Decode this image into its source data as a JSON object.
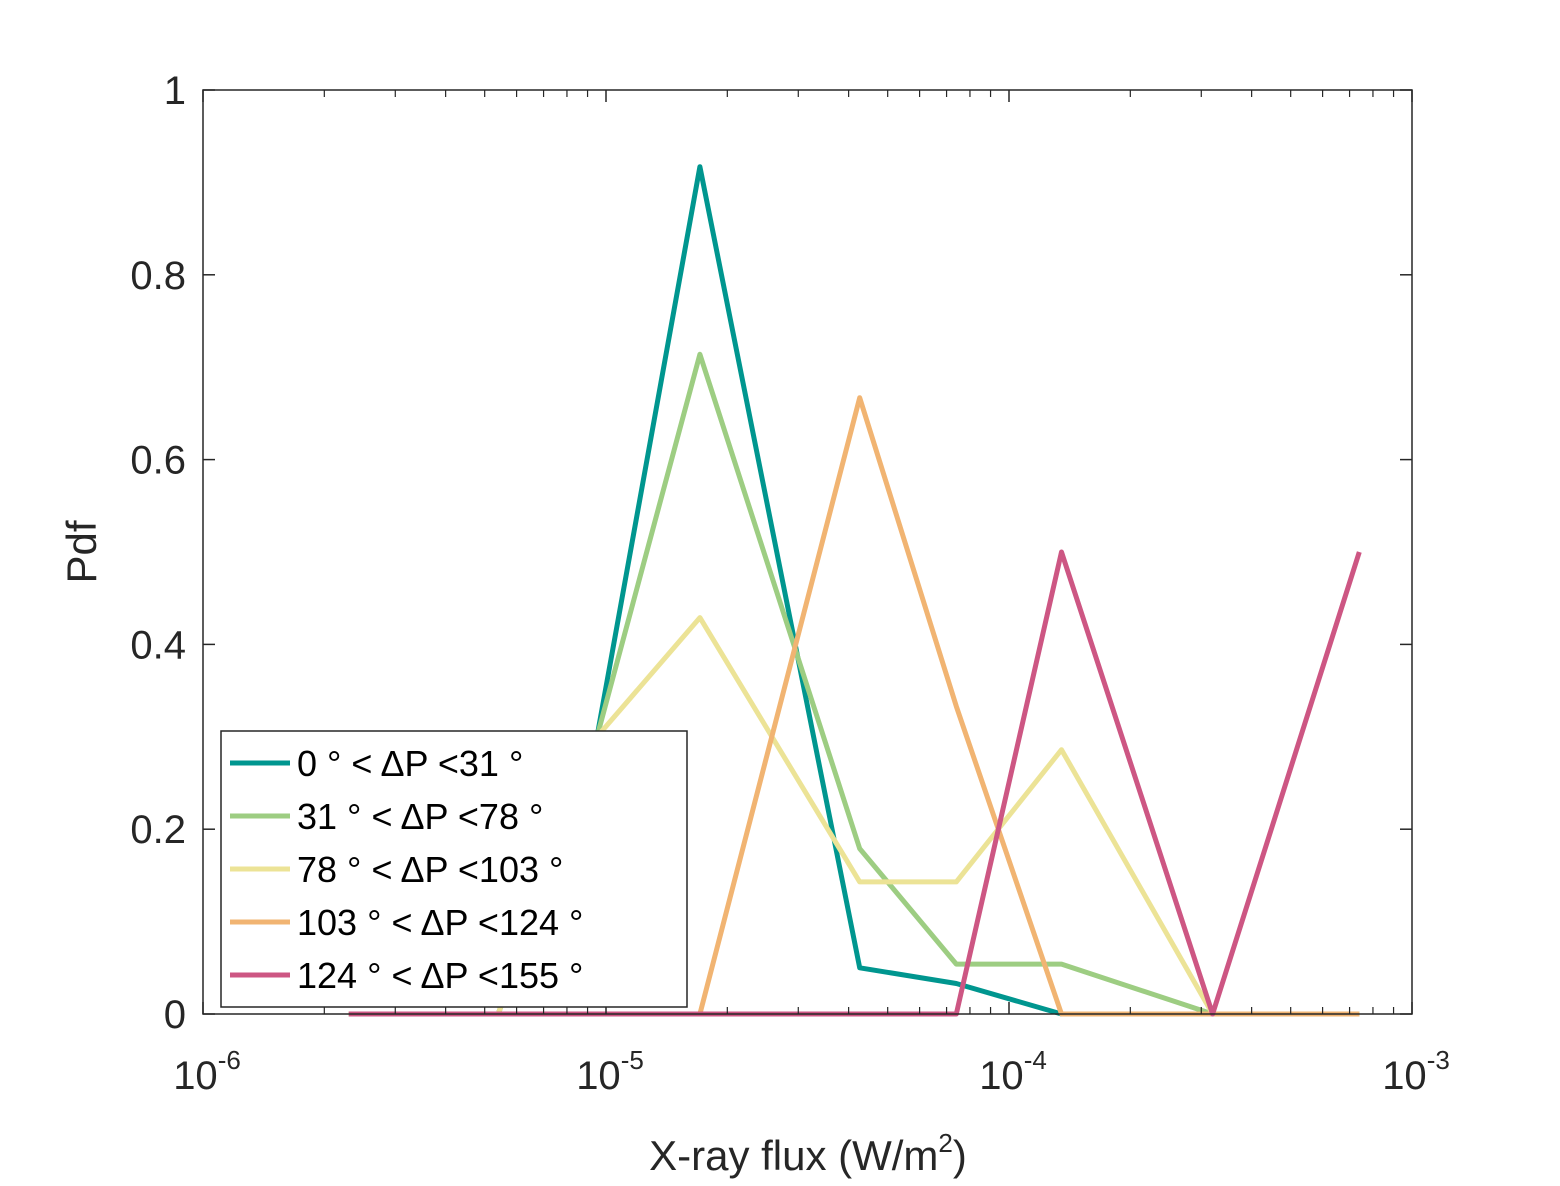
{
  "chart_data": {
    "type": "line",
    "title": "",
    "xlabel": {
      "main": "X-ray flux (W/m",
      "sup": "2",
      "close": ")"
    },
    "ylabel": "Pdf",
    "xscale": "log",
    "xlim": [
      1e-06,
      0.001
    ],
    "ylim": [
      0,
      1
    ],
    "x_ticks": [
      {
        "value": 1e-06,
        "base": "10",
        "exp": "-6"
      },
      {
        "value": 1e-05,
        "base": "10",
        "exp": "-5"
      },
      {
        "value": 0.0001,
        "base": "10",
        "exp": "-4"
      },
      {
        "value": 0.001,
        "base": "10",
        "exp": "-3"
      }
    ],
    "y_ticks": [
      {
        "value": 0,
        "label": "0"
      },
      {
        "value": 0.2,
        "label": "0.2"
      },
      {
        "value": 0.4,
        "label": "0.4"
      },
      {
        "value": 0.6,
        "label": "0.6"
      },
      {
        "value": 0.8,
        "label": "0.8"
      },
      {
        "value": 1,
        "label": "1"
      }
    ],
    "grid": false,
    "legend_position": "bottom-left",
    "series": [
      {
        "name": "0  ° < ΔP <31 °",
        "color": "#00968f",
        "x": [
          2.3e-06,
          5.4e-06,
          9.5e-06,
          1.71e-05,
          4.26e-05,
          7.4e-05,
          0.000135,
          0.00032,
          0.00074
        ],
        "y": [
          0,
          0,
          0.3,
          0.917,
          0.05,
          0.033,
          0,
          0,
          0
        ]
      },
      {
        "name": "31  ° < ΔP <78 °",
        "color": "#9dcd82",
        "x": [
          2.3e-06,
          5.4e-06,
          9.5e-06,
          1.71e-05,
          4.26e-05,
          7.4e-05,
          0.000135,
          0.00032,
          0.00074
        ],
        "y": [
          0,
          0,
          0.3,
          0.714,
          0.179,
          0.054,
          0.054,
          0,
          0
        ]
      },
      {
        "name": "78  ° < ΔP <103 °",
        "color": "#ece396",
        "x": [
          2.3e-06,
          5.4e-06,
          9.5e-06,
          1.71e-05,
          4.26e-05,
          7.4e-05,
          0.000135,
          0.00032,
          0.00074
        ],
        "y": [
          0,
          0,
          0.3,
          0.429,
          0.143,
          0.143,
          0.286,
          0,
          0
        ]
      },
      {
        "name": "103  ° < ΔP <124 °",
        "color": "#f1b472",
        "x": [
          2.3e-06,
          5.4e-06,
          9.5e-06,
          1.71e-05,
          4.26e-05,
          7.4e-05,
          0.000135,
          0.00032,
          0.00074
        ],
        "y": [
          0,
          0,
          0,
          0,
          0.667,
          0.333,
          0,
          0,
          0
        ]
      },
      {
        "name": "124  ° < ΔP <155 °",
        "color": "#cd5683",
        "x": [
          2.3e-06,
          5.4e-06,
          9.5e-06,
          1.71e-05,
          4.26e-05,
          7.4e-05,
          0.000135,
          0.00032,
          0.00074
        ],
        "y": [
          0,
          0,
          0,
          0,
          0,
          0,
          0.5,
          0,
          0.5
        ]
      }
    ]
  }
}
